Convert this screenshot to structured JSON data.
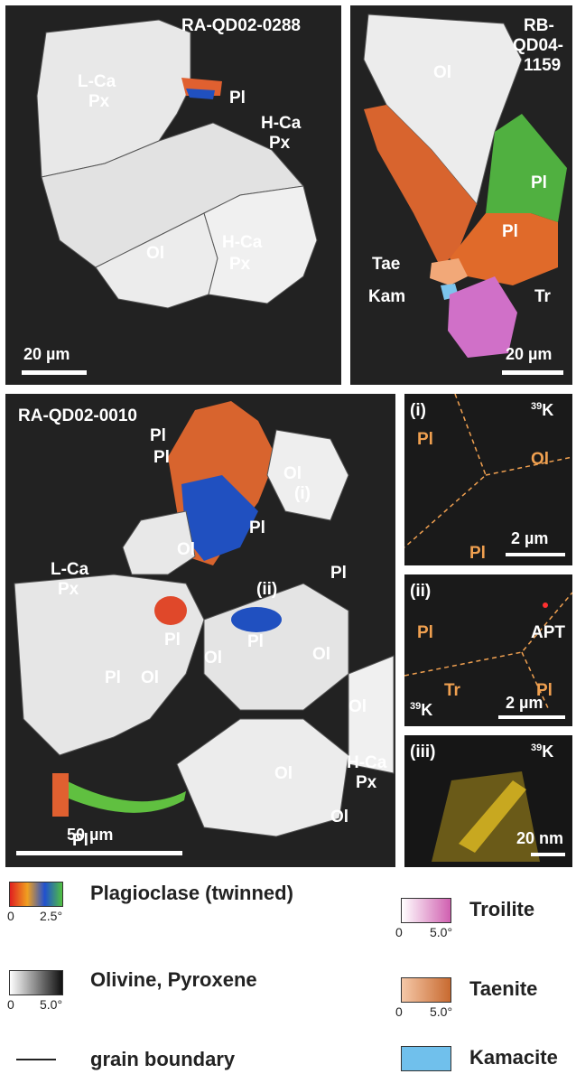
{
  "panels": {
    "a": {
      "title": "RA-QD02-0288",
      "labels": [
        "L-Ca",
        "Px",
        "Pl",
        "H-Ca",
        "Px",
        "Ol",
        "H-Ca",
        "Px"
      ],
      "scale": "20 µm"
    },
    "b": {
      "title_lines": [
        "RB-",
        "QD04-",
        "1159"
      ],
      "labels": [
        "Ol",
        "Pl",
        "Pl",
        "Tae",
        "Kam",
        "Tr"
      ],
      "scale": "20 µm"
    },
    "c": {
      "title": "RA-QD02-0010",
      "labels": [
        "Pl",
        "Pl",
        "Ol",
        "Pl",
        "(i)",
        "Ol",
        "L-Ca",
        "Px",
        "(ii)",
        "Pl",
        "Pl",
        "Pl",
        "Ol",
        "Pl",
        "Ol",
        "Ol",
        "Ol",
        "Ol",
        "H-Ca",
        "Px",
        "Pl",
        "Ol"
      ],
      "scale": "50 µm"
    },
    "i": {
      "id": "(i)",
      "isotope_mass": "39",
      "isotope_el": "K",
      "labels": [
        "Pl",
        "Ol",
        "Pl"
      ],
      "scale": "2 µm"
    },
    "ii": {
      "id": "(ii)",
      "isotope_mass": "39",
      "isotope_el": "K",
      "labels": [
        "Pl",
        "APT",
        "Tr",
        "Pl"
      ],
      "scale": "2 µm"
    },
    "iii": {
      "id": "(iii)",
      "isotope_mass": "39",
      "isotope_el": "K",
      "scale": "20 nm"
    }
  },
  "legend": {
    "plagioclase": {
      "label": "Plagioclase (twinned)",
      "min": "0",
      "max": "2.5°"
    },
    "olivine": {
      "label": "Olivine, Pyroxene",
      "min": "0",
      "max": "5.0°"
    },
    "boundary": {
      "label": "grain boundary"
    },
    "troilite": {
      "label": "Troilite",
      "min": "0",
      "max": "5.0°",
      "color": "#d060b0"
    },
    "taenite": {
      "label": "Taenite",
      "min": "0",
      "max": "5.0°",
      "color": "#d88848"
    },
    "kamacite": {
      "label": "Kamacite",
      "color": "#70c0ec"
    }
  },
  "colors": {
    "panel_bg": "#222222",
    "label_orange": "#f0a050",
    "grain_grey": "#e6e6e6"
  }
}
